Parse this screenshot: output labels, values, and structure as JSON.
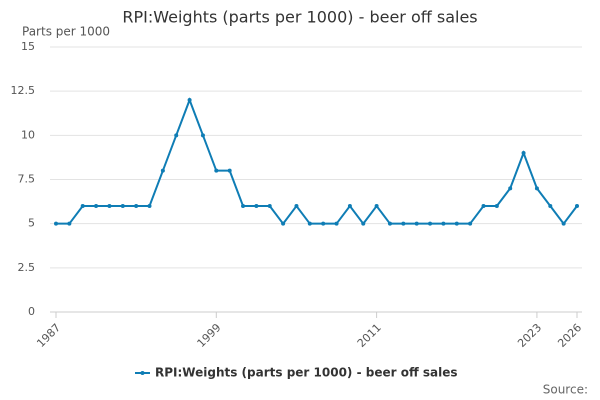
{
  "chart_data": {
    "type": "line",
    "title": "RPI:Weights (parts per 1000) - beer off sales",
    "y_label": "Parts per 1000",
    "source_label": "Source:",
    "x": [
      1987,
      1988,
      1989,
      1990,
      1991,
      1992,
      1993,
      1994,
      1995,
      1996,
      1997,
      1998,
      1999,
      2000,
      2001,
      2002,
      2003,
      2004,
      2005,
      2006,
      2007,
      2008,
      2009,
      2010,
      2011,
      2012,
      2013,
      2014,
      2015,
      2016,
      2017,
      2018,
      2019,
      2020,
      2021,
      2022,
      2023,
      2024,
      2025,
      2026
    ],
    "series": [
      {
        "name": "RPI:Weights (parts per 1000) - beer off sales",
        "color": "#0f7db5",
        "values": [
          5,
          5,
          6,
          6,
          6,
          6,
          6,
          6,
          8,
          10,
          12,
          10,
          8,
          8,
          6,
          6,
          6,
          5,
          6,
          5,
          5,
          5,
          6,
          5,
          6,
          5,
          5,
          5,
          5,
          5,
          5,
          5,
          6,
          6,
          7,
          9,
          7,
          6,
          5,
          6
        ]
      }
    ],
    "xlim": [
      1987,
      2026
    ],
    "xticks": [
      1987,
      1999,
      2011,
      2023,
      2026
    ],
    "ylim": [
      0,
      15
    ],
    "yticks": [
      0,
      2.5,
      5,
      7.5,
      10,
      12.5,
      15
    ],
    "grid": true
  }
}
